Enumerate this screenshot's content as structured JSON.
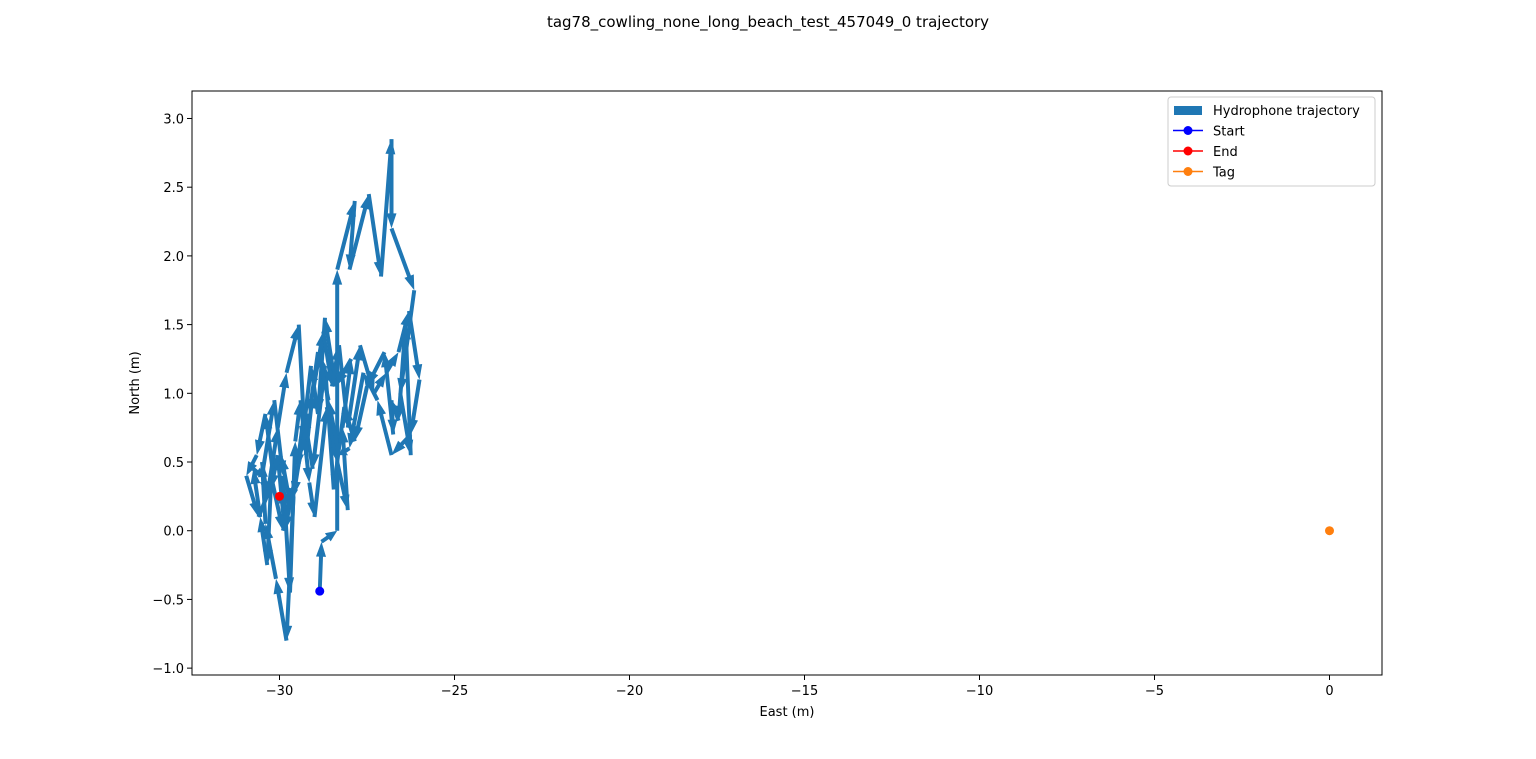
{
  "chart_data": {
    "type": "line",
    "title": "tag78_cowling_none_long_beach_test_457049_0 trajectory",
    "xlabel": "East (m)",
    "ylabel": "North (m)",
    "xlim": [
      -32.5,
      1.5
    ],
    "ylim": [
      -1.05,
      3.2
    ],
    "x_ticks": [
      -30,
      -25,
      -20,
      -15,
      -10,
      -5,
      0
    ],
    "x_tick_labels": [
      "−30",
      "−25",
      "−20",
      "−15",
      "−10",
      "−5",
      "0"
    ],
    "y_ticks": [
      -1.0,
      -0.5,
      0.0,
      0.5,
      1.0,
      1.5,
      2.0,
      2.5,
      3.0
    ],
    "y_tick_labels": [
      "−1.0",
      "−0.5",
      "0.0",
      "0.5",
      "1.0",
      "1.5",
      "2.0",
      "2.5",
      "3.0"
    ],
    "grid": false,
    "legend_position": "top-right",
    "series": [
      {
        "name": "Hydrophone trajectory",
        "style": "arrows",
        "color": "#1f77b4",
        "x": [
          -28.85,
          -28.8,
          -28.35,
          -28.35,
          -27.85,
          -28.0,
          -27.45,
          -27.1,
          -26.8,
          -26.8,
          -26.15,
          -26.55,
          -26.25,
          -26.4,
          -26.6,
          -26.8,
          -26.75,
          -27.0,
          -27.5,
          -27.85,
          -28.15,
          -28.45,
          -28.7,
          -29.05,
          -29.3,
          -29.5,
          -29.85,
          -30.05,
          -30.25,
          -30.35,
          -30.55,
          -30.75,
          -30.5,
          -30.15,
          -29.9,
          -29.7,
          -29.55,
          -29.4,
          -29.15,
          -29.0,
          -28.65,
          -28.35,
          -28.05,
          -28.2,
          -27.95,
          -28.4,
          -28.7,
          -28.9,
          -29.1,
          -29.35,
          -29.6,
          -29.8,
          -30.1,
          -30.4,
          -30.5,
          -30.35,
          -30.05,
          -29.8,
          -29.45,
          -29.25,
          -29.05,
          -28.75,
          -28.5,
          -28.3,
          -28.05,
          -27.7,
          -27.3,
          -26.95,
          -26.6,
          -26.3,
          -26.0,
          -26.25,
          -26.8,
          -27.2,
          -27.6,
          -28.0,
          -28.3,
          -28.6,
          -28.9,
          -29.15,
          -29.4,
          -29.7,
          -29.95,
          -30.2,
          -30.4,
          -30.65,
          -30.95,
          -30.6,
          -30.2,
          -29.9,
          -29.65,
          -29.95,
          -30.0
        ],
        "y": [
          -0.44,
          -0.08,
          0.0,
          1.9,
          2.4,
          1.9,
          2.45,
          1.85,
          2.85,
          2.2,
          1.75,
          1.0,
          0.55,
          1.5,
          0.8,
          0.95,
          0.7,
          1.3,
          1.05,
          0.65,
          0.9,
          0.3,
          1.2,
          0.45,
          0.85,
          0.45,
          0.0,
          0.55,
          0.3,
          -0.25,
          0.1,
          0.45,
          0.4,
          0.95,
          0.4,
          -0.45,
          0.65,
          0.95,
          0.35,
          0.1,
          0.9,
          0.5,
          0.15,
          0.75,
          1.25,
          1.05,
          1.55,
          0.85,
          1.2,
          0.65,
          0.25,
          -0.8,
          -0.35,
          0.05,
          0.5,
          0.25,
          0.75,
          1.15,
          1.5,
          0.55,
          1.0,
          1.45,
          1.05,
          1.35,
          0.75,
          1.35,
          1.0,
          1.15,
          1.3,
          1.6,
          1.1,
          0.7,
          0.55,
          0.95,
          1.15,
          0.6,
          0.55,
          0.95,
          1.3,
          0.85,
          0.55,
          0.2,
          0.55,
          0.45,
          0.85,
          0.55,
          0.4,
          0.1,
          0.35,
          0.0,
          0.3,
          0.2,
          0.25
        ]
      },
      {
        "name": "Start",
        "style": "marker",
        "color": "#0000ff",
        "x": [
          -28.85
        ],
        "y": [
          -0.44
        ]
      },
      {
        "name": "End",
        "style": "marker",
        "color": "#ff0000",
        "x": [
          -30.0
        ],
        "y": [
          0.25
        ]
      },
      {
        "name": "Tag",
        "style": "marker",
        "color": "#ff7f0e",
        "x": [
          0.0
        ],
        "y": [
          0.0
        ]
      }
    ]
  }
}
